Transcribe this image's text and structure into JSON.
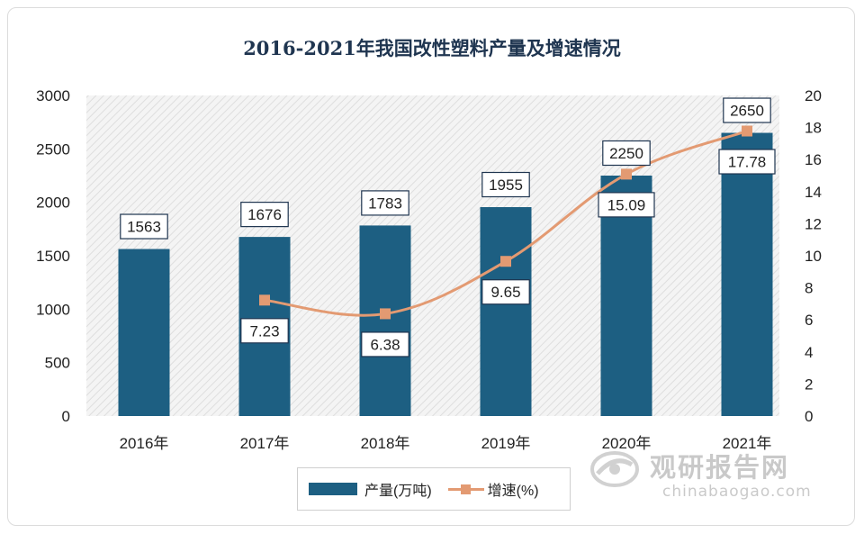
{
  "chart_data": {
    "type": "bar",
    "title": "2016-2021年我国改性塑料产量及增速情况",
    "categories": [
      "2016年",
      "2017年",
      "2018年",
      "2019年",
      "2020年",
      "2021年"
    ],
    "series": [
      {
        "name": "产量(万吨)",
        "type": "bar",
        "axis": "left",
        "color": "#1d5f82",
        "values": [
          1563,
          1676,
          1783,
          1955,
          2250,
          2650
        ]
      },
      {
        "name": "增速(%)",
        "type": "line",
        "axis": "right",
        "color": "#e39a72",
        "values": [
          null,
          7.23,
          6.38,
          9.65,
          15.09,
          17.78
        ]
      }
    ],
    "left_axis": {
      "min": 0,
      "max": 3000,
      "ticks": [
        "0",
        "500",
        "1000",
        "1500",
        "2000",
        "2500",
        "3000"
      ]
    },
    "right_axis": {
      "min": 0,
      "max": 20,
      "ticks": [
        "0",
        "2",
        "4",
        "6",
        "8",
        "10",
        "12",
        "14",
        "16",
        "18",
        "20"
      ]
    },
    "bar_labels": [
      "1563",
      "1676",
      "1783",
      "1955",
      "2250",
      "2650"
    ],
    "line_labels": [
      "",
      "7.23",
      "6.38",
      "9.65",
      "15.09",
      "17.78"
    ],
    "legend_position": "bottom",
    "grid": false
  },
  "legend": {
    "bar": "产量(万吨)",
    "line": "增速(%)"
  },
  "watermark": {
    "brand": "观研报告网",
    "url": "chinabaogao.com"
  }
}
